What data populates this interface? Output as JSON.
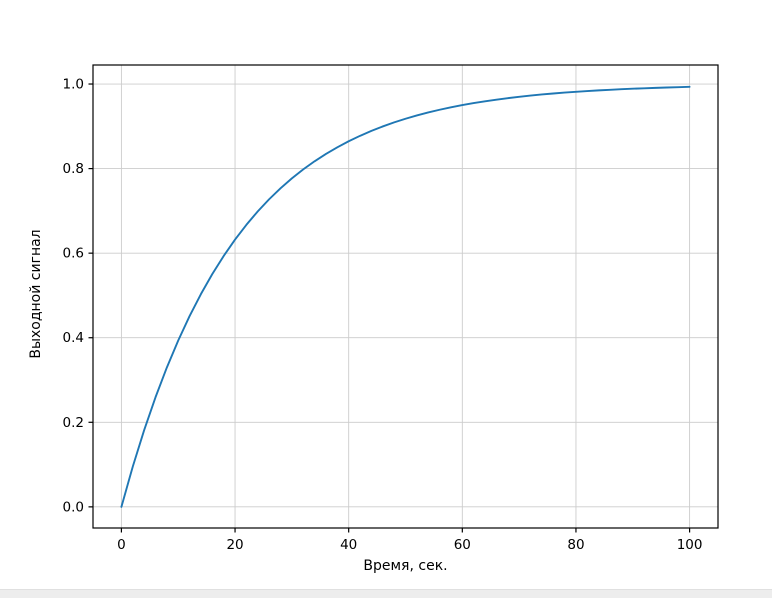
{
  "chart_data": {
    "type": "line",
    "title": "",
    "xlabel": "Время, сек.",
    "ylabel": "Выходной сигнал",
    "xlim": [
      -5,
      105
    ],
    "ylim": [
      -0.05,
      1.045
    ],
    "xticks": [
      0,
      20,
      40,
      60,
      80,
      100
    ],
    "yticks": [
      0.0,
      0.2,
      0.4,
      0.6,
      0.8,
      1.0
    ],
    "grid": true,
    "grid_color": "#cccccc",
    "axes_edge_color": "#000000",
    "line_color": "#1f77b4",
    "series": [
      {
        "name": "Выходной сигнал",
        "x": [
          0,
          2,
          4,
          6,
          8,
          10,
          12,
          14,
          16,
          18,
          20,
          22,
          24,
          26,
          28,
          30,
          32,
          34,
          36,
          38,
          40,
          42,
          44,
          46,
          48,
          50,
          52,
          54,
          56,
          58,
          60,
          62,
          64,
          66,
          68,
          70,
          72,
          74,
          76,
          78,
          80,
          82,
          84,
          86,
          88,
          90,
          92,
          94,
          96,
          98,
          100
        ],
        "y": [
          0.0,
          0.0952,
          0.1813,
          0.2592,
          0.3297,
          0.3935,
          0.4512,
          0.5034,
          0.5507,
          0.5934,
          0.6321,
          0.6671,
          0.6988,
          0.7275,
          0.7534,
          0.7769,
          0.7981,
          0.8173,
          0.8347,
          0.8504,
          0.8647,
          0.8775,
          0.8892,
          0.8997,
          0.9093,
          0.9179,
          0.9257,
          0.9328,
          0.9392,
          0.945,
          0.9502,
          0.955,
          0.9592,
          0.9631,
          0.9666,
          0.9698,
          0.9727,
          0.9753,
          0.9776,
          0.9798,
          0.9817,
          0.9834,
          0.985,
          0.9864,
          0.9877,
          0.9889,
          0.9899,
          0.9909,
          0.9918,
          0.9926,
          0.9933
        ]
      }
    ]
  }
}
